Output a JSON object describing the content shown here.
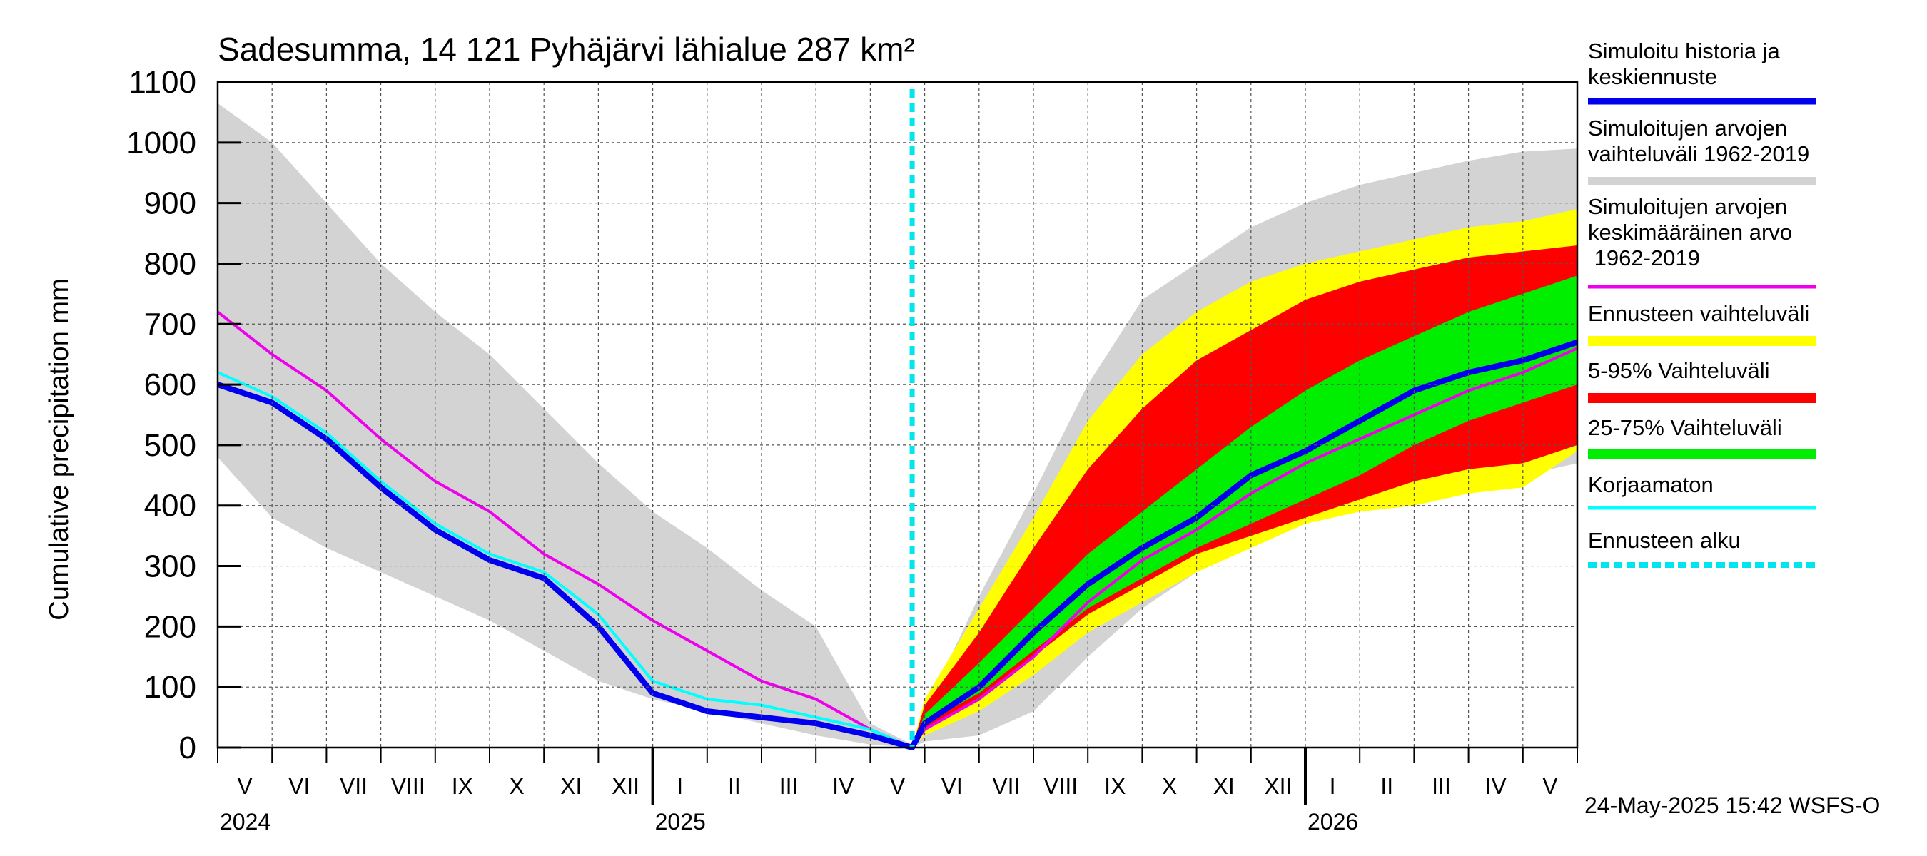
{
  "chart_data": {
    "type": "area",
    "title": "Sadesumma, 14 121 Pyhäjärvi lähialue 287 km²",
    "ylabel": "Cumulative precipitation   mm",
    "ylim": [
      0,
      1100
    ],
    "yticks": [
      "0",
      "100",
      "200",
      "300",
      "400",
      "500",
      "600",
      "700",
      "800",
      "900",
      "1000",
      "1100"
    ],
    "grid": true,
    "x_start": "2024-05-01",
    "x_end": "2026-06-01",
    "forecast_start": "2025-05-24",
    "month_labels": [
      "V",
      "VI",
      "VII",
      "VIII",
      "IX",
      "X",
      "XI",
      "XII",
      "I",
      "II",
      "III",
      "IV",
      "V",
      "VI",
      "VII",
      "VIII",
      "IX",
      "X",
      "XI",
      "XII",
      "I",
      "II",
      "III",
      "IV",
      "V"
    ],
    "year_labels": [
      "2024",
      "2025",
      "2026"
    ],
    "timestamp": "24-May-2025 15:42 WSFS-O",
    "legend": [
      {
        "label": "Simuloitu historia ja keskiennuste",
        "color": "#0000ee"
      },
      {
        "label": "Simuloitujen arvojen vaihteluväli 1962-2019",
        "color": "#d3d3d3"
      },
      {
        "label": "Simuloitujen arvojen keskimääräinen arvo    1962-2019",
        "color": "#ee00ee"
      },
      {
        "label": "Ennusteen vaihteluväli",
        "color": "#ffff00"
      },
      {
        "label": "5-95% Vaihteluväli",
        "color": "#ff0000"
      },
      {
        "label": "25-75% Vaihteluväli",
        "color": "#00ee00"
      },
      {
        "label": "Korjaamaton",
        "color": "#00ffff"
      },
      {
        "label": "Ennusteen alku",
        "color": "#00e5ee"
      }
    ],
    "series": [
      {
        "name": "Simuloitujen arvojen vaihteluväli 1962-2019 (max)",
        "x": [
          0,
          1,
          2,
          3,
          4,
          5,
          6,
          7,
          8,
          9,
          10,
          11,
          12,
          12.77,
          13,
          14,
          15,
          16,
          17,
          18,
          19,
          20,
          21,
          22,
          23,
          24,
          25
        ],
        "values": [
          1065,
          1000,
          900,
          800,
          720,
          650,
          560,
          470,
          390,
          330,
          260,
          200,
          40,
          5,
          60,
          250,
          420,
          600,
          740,
          800,
          860,
          900,
          930,
          950,
          970,
          985,
          990
        ]
      },
      {
        "name": "Simuloitujen arvojen vaihteluväli 1962-2019 (min)",
        "x": [
          0,
          1,
          2,
          3,
          4,
          5,
          6,
          7,
          8,
          9,
          10,
          11,
          12,
          12.77,
          13,
          14,
          15,
          16,
          17,
          18,
          19,
          20,
          21,
          22,
          23,
          24,
          25
        ],
        "values": [
          480,
          380,
          330,
          290,
          250,
          210,
          160,
          110,
          80,
          60,
          40,
          20,
          5,
          0,
          10,
          20,
          60,
          150,
          230,
          290,
          340,
          370,
          400,
          410,
          430,
          450,
          470
        ]
      },
      {
        "name": "Simuloitujen arvojen keskimääräinen arvo 1962-2019",
        "x": [
          0,
          1,
          2,
          3,
          4,
          5,
          6,
          7,
          8,
          9,
          10,
          11,
          12,
          12.77,
          13,
          14,
          15,
          16,
          17,
          18,
          19,
          20,
          21,
          22,
          23,
          24,
          25
        ],
        "values": [
          720,
          650,
          590,
          510,
          440,
          390,
          320,
          270,
          210,
          160,
          110,
          80,
          30,
          0,
          30,
          80,
          150,
          240,
          310,
          360,
          420,
          470,
          510,
          550,
          590,
          620,
          660
        ]
      },
      {
        "name": "Simuloitu historia ja keskiennuste",
        "x": [
          0,
          1,
          2,
          3,
          4,
          5,
          6,
          7,
          8,
          9,
          10,
          11,
          12,
          12.77,
          13,
          14,
          15,
          16,
          17,
          18,
          19,
          20,
          21,
          22,
          23,
          24,
          25
        ],
        "values": [
          600,
          570,
          510,
          430,
          360,
          310,
          280,
          200,
          90,
          60,
          50,
          40,
          20,
          0,
          40,
          100,
          190,
          270,
          330,
          380,
          450,
          490,
          540,
          590,
          620,
          640,
          670
        ]
      },
      {
        "name": "Korjaamaton",
        "x": [
          0,
          1,
          2,
          3,
          4,
          5,
          6,
          7,
          8,
          9,
          10,
          11,
          12,
          12.77
        ],
        "values": [
          620,
          580,
          520,
          440,
          370,
          320,
          290,
          220,
          110,
          80,
          70,
          50,
          30,
          0
        ]
      },
      {
        "name": "Ennusteen vaihteluväli (max)",
        "x": [
          12.77,
          13,
          14,
          15,
          16,
          17,
          18,
          19,
          20,
          21,
          22,
          23,
          24,
          25
        ],
        "values": [
          0,
          80,
          230,
          380,
          540,
          650,
          720,
          770,
          800,
          820,
          840,
          860,
          870,
          890
        ]
      },
      {
        "name": "Ennusteen vaihteluväli (min)",
        "x": [
          12.77,
          13,
          14,
          15,
          16,
          17,
          18,
          19,
          20,
          21,
          22,
          23,
          24,
          25
        ],
        "values": [
          0,
          20,
          60,
          120,
          190,
          240,
          290,
          330,
          370,
          390,
          400,
          420,
          430,
          490
        ]
      },
      {
        "name": "5-95% Vaihteluväli (max)",
        "x": [
          12.77,
          13,
          14,
          15,
          16,
          17,
          18,
          19,
          20,
          21,
          22,
          23,
          24,
          25
        ],
        "values": [
          0,
          70,
          190,
          330,
          460,
          560,
          640,
          690,
          740,
          770,
          790,
          810,
          820,
          830
        ]
      },
      {
        "name": "5-95% Vaihteluväli (min)",
        "x": [
          12.77,
          13,
          14,
          15,
          16,
          17,
          18,
          19,
          20,
          21,
          22,
          23,
          24,
          25
        ],
        "values": [
          0,
          30,
          80,
          150,
          220,
          270,
          320,
          350,
          380,
          410,
          440,
          460,
          470,
          500
        ]
      },
      {
        "name": "25-75% Vaihteluväli (max)",
        "x": [
          12.77,
          13,
          14,
          15,
          16,
          17,
          18,
          19,
          20,
          21,
          22,
          23,
          24,
          25
        ],
        "values": [
          0,
          55,
          140,
          230,
          320,
          390,
          460,
          530,
          590,
          640,
          680,
          720,
          750,
          780
        ]
      },
      {
        "name": "25-75% Vaihteluväli (min)",
        "x": [
          12.77,
          13,
          14,
          15,
          16,
          17,
          18,
          19,
          20,
          21,
          22,
          23,
          24,
          25
        ],
        "values": [
          0,
          40,
          90,
          160,
          230,
          280,
          330,
          370,
          410,
          450,
          500,
          540,
          570,
          600
        ]
      }
    ]
  }
}
